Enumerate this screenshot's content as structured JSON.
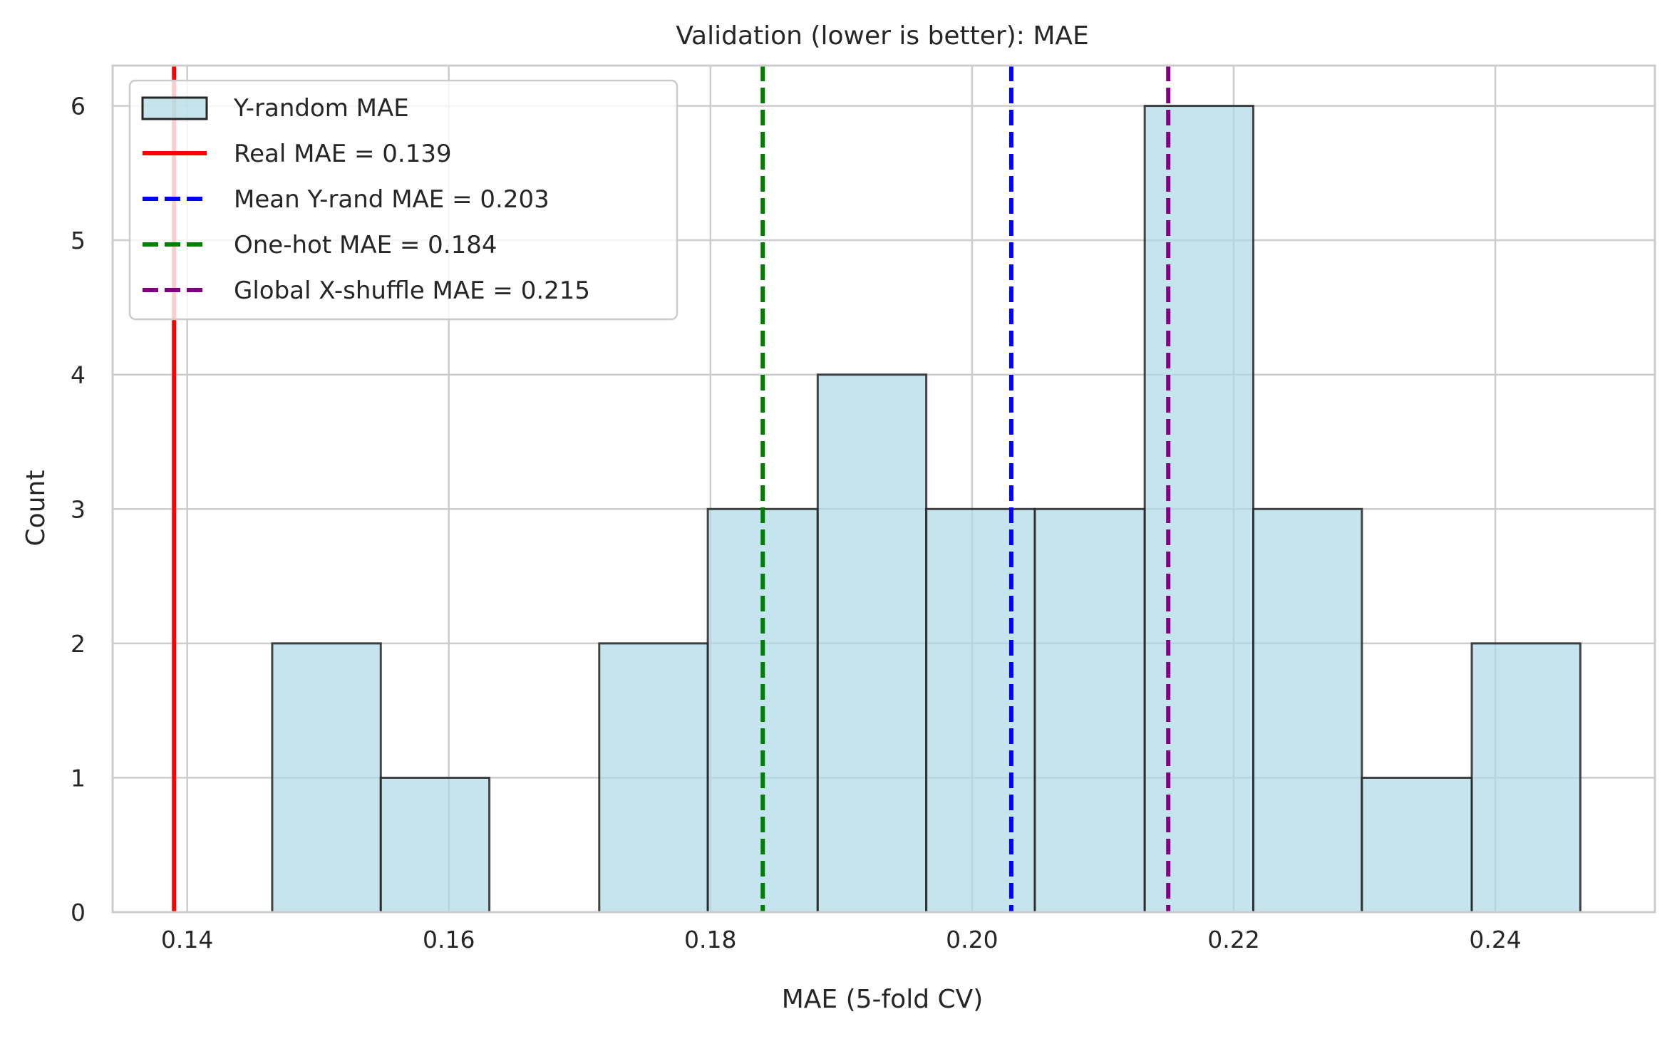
{
  "chart_data": {
    "type": "bar",
    "subtype": "histogram",
    "title": "Validation (lower is better): MAE",
    "xlabel": "MAE (5-fold CV)",
    "ylabel": "Count",
    "xlim": [
      0.1343,
      0.2522
    ],
    "ylim": [
      0,
      6.3
    ],
    "x_ticks": [
      0.14,
      0.16,
      0.18,
      0.2,
      0.22,
      0.24
    ],
    "x_tick_labels": [
      "0.14",
      "0.16",
      "0.18",
      "0.20",
      "0.22",
      "0.24"
    ],
    "y_ticks": [
      0,
      1,
      2,
      3,
      4,
      5,
      6
    ],
    "y_tick_labels": [
      "0",
      "1",
      "2",
      "3",
      "4",
      "5",
      "6"
    ],
    "grid": true,
    "legend_position": "top-left",
    "bin_edges": [
      0.1465,
      0.1548,
      0.1631,
      0.1715,
      0.1798,
      0.1882,
      0.1965,
      0.2048,
      0.2132,
      0.2215,
      0.2298,
      0.2382,
      0.2465
    ],
    "counts": [
      2,
      1,
      0,
      2,
      3,
      4,
      3,
      3,
      6,
      3,
      1,
      2
    ],
    "series": [
      {
        "name": "Y-random MAE",
        "kind": "histogram",
        "color": "#add8e6",
        "edge_color": "#262626"
      },
      {
        "name": "Real MAE = 0.139",
        "kind": "vline",
        "x": 0.139,
        "color": "#ff0000",
        "style": "solid"
      },
      {
        "name": "Mean Y-rand MAE = 0.203",
        "kind": "vline",
        "x": 0.203,
        "color": "#0000ff",
        "style": "dashed"
      },
      {
        "name": "One-hot MAE = 0.184",
        "kind": "vline",
        "x": 0.184,
        "color": "#008000",
        "style": "dashed"
      },
      {
        "name": "Global X-shuffle MAE = 0.215",
        "kind": "vline",
        "x": 0.215,
        "color": "#800080",
        "style": "dashed"
      }
    ]
  }
}
